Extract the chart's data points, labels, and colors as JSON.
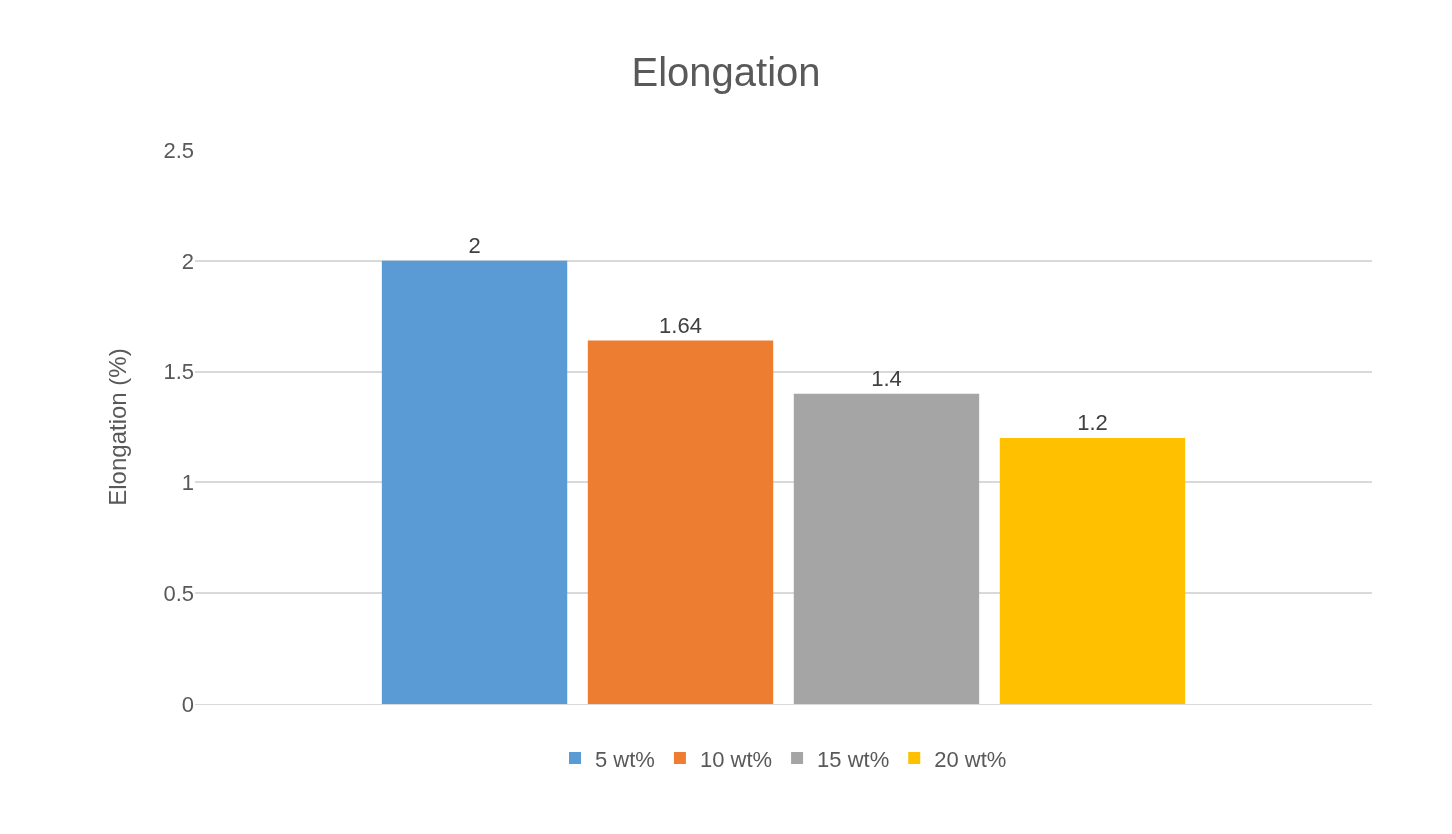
{
  "chart_data": {
    "type": "bar",
    "title": "Elongation",
    "ylabel": "Elongation (%)",
    "categories": [
      null
    ],
    "series": [
      {
        "name": "5 wt%",
        "color": "#5b9bd5",
        "values": [
          2
        ]
      },
      {
        "name": "10 wt%",
        "color": "#ed7d31",
        "values": [
          1.64
        ]
      },
      {
        "name": "15 wt%",
        "color": "#a5a5a5",
        "values": [
          1.4
        ]
      },
      {
        "name": "20 wt%",
        "color": "#ffc000",
        "values": [
          1.2
        ]
      }
    ],
    "ylim": [
      0,
      2.5
    ],
    "yticks": [
      0,
      0.5,
      1,
      1.5,
      2,
      2.5
    ],
    "grid": "y",
    "legend": "bottom",
    "data_labels": true
  }
}
